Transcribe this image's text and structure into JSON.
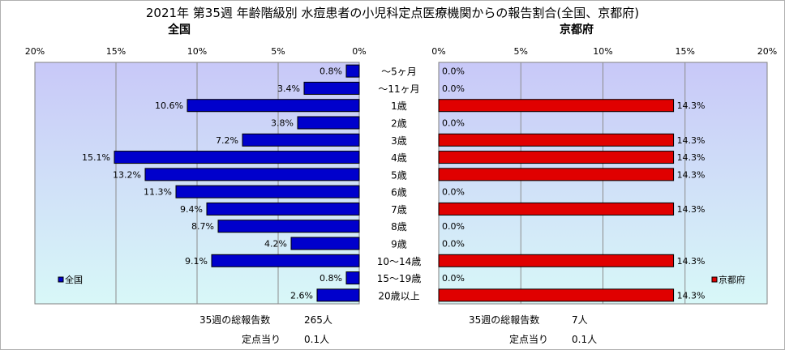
{
  "title": "2021年 第35週 年齢階級別 水痘患者の小児科定点医療機関からの報告割合(全国、京都府)",
  "categories": [
    "～5ヶ月",
    "～11ヶ月",
    "1歳",
    "2歳",
    "3歳",
    "4歳",
    "5歳",
    "6歳",
    "7歳",
    "8歳",
    "9歳",
    "10～14歳",
    "15～19歳",
    "20歳以上"
  ],
  "colors": {
    "national_bar": "#0000cc",
    "kyoto_bar": "#e00000",
    "plot_top": "#c8c8f8",
    "plot_bottom": "#d8f8f8"
  },
  "chart_data": [
    {
      "type": "bar",
      "orientation": "horizontal",
      "panel_title": "全国",
      "series": [
        {
          "name": "全国",
          "values": [
            0.8,
            3.4,
            10.6,
            3.8,
            7.2,
            15.1,
            13.2,
            11.3,
            9.4,
            8.7,
            4.2,
            9.1,
            0.8,
            2.6
          ]
        }
      ],
      "value_labels": [
        "0.8%",
        "3.4%",
        "10.6%",
        "3.8%",
        "7.2%",
        "15.1%",
        "13.2%",
        "11.3%",
        "9.4%",
        "8.7%",
        "4.2%",
        "9.1%",
        "0.8%",
        "2.6%"
      ],
      "xlim": [
        0,
        20
      ],
      "x_reversed": true,
      "xticks": [
        "0%",
        "5%",
        "10%",
        "15%",
        "20%"
      ],
      "grid": true,
      "legend": "lower-left"
    },
    {
      "type": "bar",
      "orientation": "horizontal",
      "panel_title": "京都府",
      "series": [
        {
          "name": "京都府",
          "values": [
            0,
            0,
            14.3,
            0,
            14.3,
            14.3,
            14.3,
            0,
            14.3,
            0,
            0,
            14.3,
            0,
            14.3
          ]
        }
      ],
      "value_labels": [
        "0.0%",
        "0.0%",
        "14.3%",
        "0.0%",
        "14.3%",
        "14.3%",
        "14.3%",
        "0.0%",
        "14.3%",
        "0.0%",
        "0.0%",
        "14.3%",
        "0.0%",
        "14.3%"
      ],
      "xlim": [
        0,
        20
      ],
      "xticks": [
        "0%",
        "5%",
        "10%",
        "15%",
        "20%"
      ],
      "grid": true,
      "legend": "lower-right"
    }
  ],
  "footer": {
    "national_total_label": "35週の総報告数",
    "national_total_value": "265人",
    "national_per_label": "定点当り",
    "national_per_value": "0.1人",
    "kyoto_total_label": "35週の総報告数",
    "kyoto_total_value": "7人",
    "kyoto_per_label": "定点当り",
    "kyoto_per_value": "0.1人"
  }
}
